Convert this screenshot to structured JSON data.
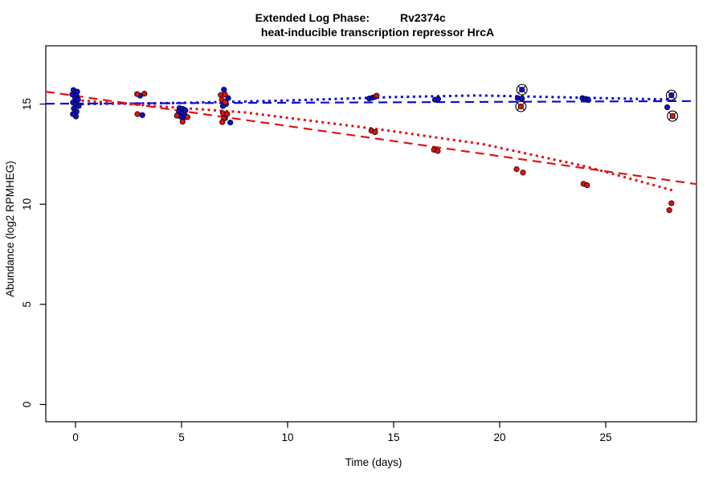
{
  "title": {
    "part1": "Extended Log Phase:",
    "part2": "Rv2374c",
    "line2": "heat-inducible transcription repressor HrcA"
  },
  "axes": {
    "x": {
      "label": "Time  (days)",
      "ticks": [
        0,
        5,
        10,
        15,
        20,
        25
      ],
      "range": [
        -1.4,
        29.3
      ]
    },
    "y": {
      "label": "Abundance  (log2 RPMHEG)",
      "ticks": [
        0,
        5,
        10,
        15
      ],
      "range": [
        -0.9,
        17.9
      ]
    }
  },
  "chart_data": {
    "type": "scatter",
    "title": "Extended Log Phase: Rv2374c",
    "subtitle": "heat-inducible transcription repressor HrcA",
    "xlabel": "Time  (days)",
    "ylabel": "Abundance  (log2 RPMHEG)",
    "xlim": [
      -1.4,
      29.3
    ],
    "ylim": [
      -0.9,
      17.9
    ],
    "grid": false,
    "legend": false,
    "series": [
      {
        "name": "blue-condition",
        "color": "#0d0dd6",
        "points": [
          [
            -0.1,
            15.7
          ],
          [
            0.08,
            15.62
          ],
          [
            -0.15,
            15.48
          ],
          [
            0.05,
            15.42
          ],
          [
            -0.02,
            15.3
          ],
          [
            0.12,
            15.22
          ],
          [
            -0.12,
            15.08
          ],
          [
            0.03,
            15.0
          ],
          [
            0.15,
            14.9
          ],
          [
            -0.08,
            14.78
          ],
          [
            0.05,
            14.62
          ],
          [
            -0.12,
            14.5
          ],
          [
            0.02,
            14.38
          ],
          [
            3.05,
            15.42
          ],
          [
            3.15,
            14.45
          ],
          [
            4.9,
            14.8
          ],
          [
            5.05,
            14.76
          ],
          [
            5.18,
            14.68
          ],
          [
            4.88,
            14.6
          ],
          [
            5.02,
            14.52
          ],
          [
            5.15,
            14.45
          ],
          [
            4.95,
            14.38
          ],
          [
            5.08,
            14.3
          ],
          [
            7.0,
            15.72
          ],
          [
            7.2,
            15.3
          ],
          [
            7.1,
            15.0
          ],
          [
            6.95,
            14.9
          ],
          [
            7.05,
            14.3
          ],
          [
            7.3,
            14.08
          ],
          [
            13.85,
            15.28
          ],
          [
            14.0,
            15.32
          ],
          [
            14.12,
            15.36
          ],
          [
            16.95,
            15.22
          ],
          [
            17.1,
            15.26
          ],
          [
            20.85,
            15.3
          ],
          [
            21.05,
            15.27
          ],
          [
            23.9,
            15.3
          ],
          [
            24.05,
            15.26
          ],
          [
            24.18,
            15.2
          ],
          [
            27.9,
            14.84
          ]
        ],
        "flagged_points": [
          [
            21.05,
            15.72
          ],
          [
            28.1,
            15.44
          ]
        ]
      },
      {
        "name": "red-condition",
        "color": "#e01212",
        "points": [
          [
            2.9,
            15.5
          ],
          [
            3.25,
            15.52
          ],
          [
            2.92,
            14.5
          ],
          [
            4.78,
            14.42
          ],
          [
            5.28,
            14.35
          ],
          [
            5.05,
            14.12
          ],
          [
            6.85,
            15.45
          ],
          [
            7.05,
            15.48
          ],
          [
            6.9,
            15.22
          ],
          [
            7.05,
            15.1
          ],
          [
            6.95,
            14.55
          ],
          [
            7.15,
            14.5
          ],
          [
            7.0,
            14.28
          ],
          [
            6.92,
            14.1
          ],
          [
            14.2,
            15.42
          ],
          [
            13.95,
            13.68
          ],
          [
            14.12,
            13.6
          ],
          [
            16.9,
            12.72
          ],
          [
            17.08,
            12.66
          ],
          [
            20.8,
            11.75
          ],
          [
            21.1,
            11.58
          ],
          [
            23.95,
            11.02
          ],
          [
            24.12,
            10.95
          ],
          [
            28.1,
            10.05
          ],
          [
            28.0,
            9.7
          ]
        ],
        "flagged_points": [
          [
            21.0,
            14.88
          ],
          [
            28.15,
            14.4
          ]
        ]
      }
    ],
    "trend_lines": [
      {
        "series": "blue-condition",
        "style": "dashed",
        "color": "#0d0dd6",
        "points": [
          [
            -1.4,
            15.02
          ],
          [
            29.3,
            15.15
          ]
        ]
      },
      {
        "series": "blue-condition",
        "style": "dotted",
        "color": "#0d0dd6",
        "points": [
          [
            0,
            15.0
          ],
          [
            5,
            15.06
          ],
          [
            10,
            15.18
          ],
          [
            15,
            15.35
          ],
          [
            19,
            15.43
          ],
          [
            23,
            15.34
          ],
          [
            28.3,
            15.22
          ]
        ]
      },
      {
        "series": "red-condition",
        "style": "dashed",
        "color": "#e01212",
        "points": [
          [
            -1.4,
            15.62
          ],
          [
            29.3,
            11.0
          ]
        ]
      },
      {
        "series": "red-condition",
        "style": "dotted",
        "color": "#e01212",
        "points": [
          [
            0,
            15.2
          ],
          [
            4,
            14.88
          ],
          [
            8,
            14.58
          ],
          [
            14.6,
            13.7
          ],
          [
            19.2,
            13.0
          ],
          [
            24,
            11.9
          ],
          [
            28.3,
            10.65
          ]
        ]
      }
    ]
  },
  "colors": {
    "blue": "#0d0dd6",
    "red": "#e01212",
    "axis": "#000000",
    "background": "#ffffff"
  }
}
